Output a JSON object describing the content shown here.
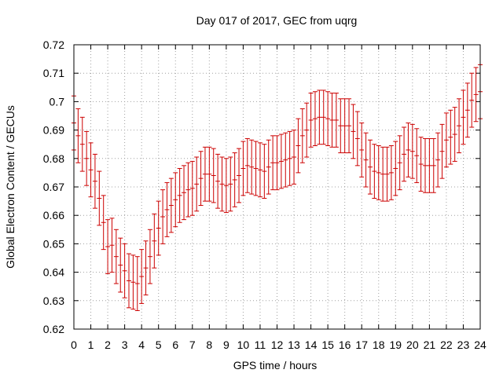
{
  "chart_data": {
    "type": "scatter",
    "title": "Day 017 of 2017, GEC from uqrg",
    "xlabel": "GPS time / hours",
    "ylabel": "Global Electron Content / GECUs",
    "xlim": [
      0,
      24
    ],
    "ylim": [
      0.62,
      0.72
    ],
    "xticks": [
      0,
      1,
      2,
      3,
      4,
      5,
      6,
      7,
      8,
      9,
      10,
      11,
      12,
      13,
      14,
      15,
      16,
      17,
      18,
      19,
      20,
      21,
      22,
      23,
      24
    ],
    "xtick_labels": [
      "0",
      "1",
      "2",
      "3",
      "4",
      "5",
      "6",
      "7",
      "8",
      "9",
      "10",
      "11",
      "12",
      "13",
      "14",
      "15",
      "16",
      "17",
      "18",
      "19",
      "20",
      "21",
      "22",
      "23",
      "24"
    ],
    "yticks": [
      0.62,
      0.63,
      0.64,
      0.65,
      0.66,
      0.67,
      0.68,
      0.69,
      0.7,
      0.71,
      0.72
    ],
    "ytick_labels": [
      "0.62",
      "0.63",
      "0.64",
      "0.65",
      "0.66",
      "0.67",
      "0.68",
      "0.69",
      "0.7",
      "0.71",
      "0.72"
    ],
    "grid": true,
    "error_bars": true,
    "error": 0.0095,
    "color": "#cc0000",
    "series": [
      {
        "x": [
          0,
          0.25,
          0.5,
          0.75,
          1,
          1.25,
          1.5,
          1.75,
          2,
          2.25,
          2.5,
          2.75,
          3,
          3.25,
          3.5,
          3.75,
          4,
          4.25,
          4.5,
          4.75,
          5,
          5.25,
          5.5,
          5.75,
          6,
          6.25,
          6.5,
          6.75,
          7,
          7.25,
          7.5,
          7.75,
          8,
          8.25,
          8.5,
          8.75,
          9,
          9.25,
          9.5,
          9.75,
          10,
          10.25,
          10.5,
          10.75,
          11,
          11.25,
          11.5,
          11.75,
          12,
          12.25,
          12.5,
          12.75,
          13,
          13.25,
          13.5,
          13.75,
          14,
          14.25,
          14.5,
          14.75,
          15,
          15.25,
          15.5,
          15.75,
          16,
          16.25,
          16.5,
          16.75,
          17,
          17.25,
          17.5,
          17.75,
          18,
          18.25,
          18.5,
          18.75,
          19,
          19.25,
          19.5,
          19.75,
          20,
          20.25,
          20.5,
          20.75,
          21,
          21.25,
          21.5,
          21.75,
          22,
          22.25,
          22.5,
          22.75,
          23,
          23.25,
          23.5,
          23.75,
          24
        ],
        "y": [
          0.6925,
          0.688,
          0.685,
          0.68,
          0.676,
          0.672,
          0.666,
          0.6575,
          0.649,
          0.6495,
          0.6455,
          0.6425,
          0.6405,
          0.637,
          0.6365,
          0.636,
          0.6385,
          0.6415,
          0.6455,
          0.651,
          0.6555,
          0.6595,
          0.662,
          0.6635,
          0.6655,
          0.667,
          0.668,
          0.669,
          0.6695,
          0.671,
          0.673,
          0.6745,
          0.6745,
          0.674,
          0.672,
          0.671,
          0.6705,
          0.671,
          0.6725,
          0.674,
          0.6765,
          0.6775,
          0.677,
          0.6765,
          0.676,
          0.6755,
          0.677,
          0.6785,
          0.6785,
          0.679,
          0.6795,
          0.68,
          0.6805,
          0.6845,
          0.688,
          0.69,
          0.6935,
          0.694,
          0.6945,
          0.6945,
          0.694,
          0.6935,
          0.6935,
          0.6915,
          0.6915,
          0.6915,
          0.6895,
          0.687,
          0.683,
          0.6795,
          0.677,
          0.6755,
          0.675,
          0.6745,
          0.6745,
          0.675,
          0.6765,
          0.6785,
          0.6815,
          0.683,
          0.6825,
          0.681,
          0.678,
          0.6775,
          0.6775,
          0.6775,
          0.6795,
          0.6825,
          0.6865,
          0.6875,
          0.6885,
          0.6915,
          0.6945,
          0.697,
          0.7005,
          0.7025,
          0.7035
        ]
      }
    ]
  }
}
